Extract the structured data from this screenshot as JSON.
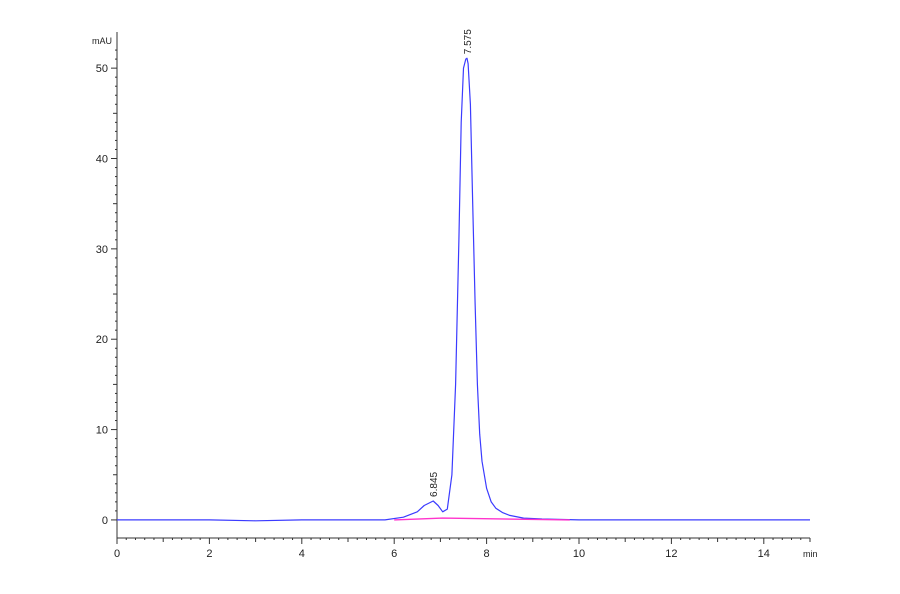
{
  "chart_data": {
    "type": "line",
    "title": "",
    "xlabel": "min",
    "ylabel": "mAU",
    "xlim": [
      0,
      15
    ],
    "ylim": [
      -2,
      54
    ],
    "x_ticks": [
      0,
      2,
      4,
      6,
      8,
      10,
      12,
      14
    ],
    "x_tick_labels": [
      "0",
      "2",
      "4",
      "6",
      "8",
      "10",
      "12",
      "14"
    ],
    "y_ticks": [
      0,
      10,
      20,
      30,
      40,
      50
    ],
    "y_tick_labels": [
      "0",
      "10",
      "20",
      "30",
      "40",
      "50"
    ],
    "grid": false,
    "legend": "none",
    "series": [
      {
        "kind": "signal",
        "color": "#3b3bff",
        "x": [
          0,
          1,
          2,
          3,
          4,
          5,
          5.8,
          6.2,
          6.5,
          6.65,
          6.845,
          6.95,
          7.05,
          7.15,
          7.25,
          7.33,
          7.4,
          7.45,
          7.5,
          7.55,
          7.575,
          7.6,
          7.65,
          7.7,
          7.75,
          7.8,
          7.85,
          7.9,
          8.0,
          8.1,
          8.2,
          8.35,
          8.5,
          8.8,
          9.2,
          10,
          11,
          12,
          13,
          14,
          15
        ],
        "y": [
          0,
          0,
          0,
          -0.1,
          0,
          0,
          0,
          0.3,
          0.9,
          1.6,
          2.1,
          1.6,
          0.9,
          1.2,
          5,
          15,
          31,
          44,
          50,
          51,
          51.1,
          50.5,
          46,
          35,
          24,
          15,
          9.5,
          6.5,
          3.5,
          2.0,
          1.3,
          0.8,
          0.5,
          0.2,
          0.1,
          0,
          0,
          0,
          0,
          0,
          0
        ]
      },
      {
        "kind": "baseline",
        "color": "#ff33cc",
        "x": [
          6.0,
          7.05,
          9.8
        ],
        "y": [
          0,
          0.2,
          0
        ]
      }
    ],
    "peaks": [
      {
        "x": 6.845,
        "y": 2.1,
        "label": "6.845"
      },
      {
        "x": 7.575,
        "y": 51.1,
        "label": "7.575"
      }
    ]
  }
}
